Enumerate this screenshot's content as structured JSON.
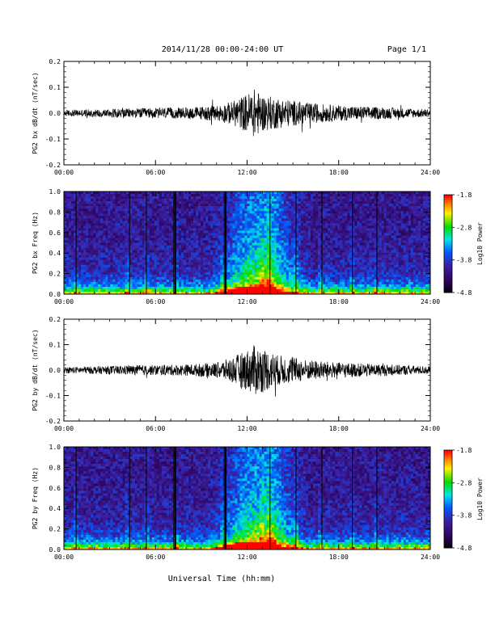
{
  "header": {
    "title": "2014/11/28  00:00-24:00 UT",
    "page": "Page 1/1"
  },
  "footer": {
    "xlabel": "Universal Time (hh:mm)"
  },
  "colorbar": {
    "label": "Log10 Power",
    "ticks": [
      "-1.8",
      "-2.8",
      "-3.8",
      "-4.8"
    ],
    "range": [
      -4.8,
      -1.8
    ]
  },
  "chart_data": [
    {
      "type": "line",
      "ylabel": "PG2 bx dB/dt (nT/sec)",
      "x_ticks": [
        "00:00",
        "06:00",
        "12:00",
        "18:00",
        "24:00"
      ],
      "y_ticks": [
        "0.2",
        "0.1",
        "0.0",
        "-0.1",
        "-0.2"
      ],
      "xlim": [
        0,
        24
      ],
      "ylim": [
        -0.2,
        0.2
      ],
      "series": [
        {
          "x": [
            0,
            2,
            4,
            6,
            8,
            10,
            11,
            12,
            12.5,
            13,
            14,
            15,
            16,
            18,
            20,
            22,
            24
          ],
          "envelope": [
            0.012,
            0.015,
            0.018,
            0.02,
            0.022,
            0.03,
            0.045,
            0.075,
            0.095,
            0.07,
            0.06,
            0.05,
            0.04,
            0.03,
            0.025,
            0.02,
            0.015
          ]
        }
      ]
    },
    {
      "type": "heatmap",
      "ylabel": "PG2 bx Freq (Hz)",
      "x_ticks": [
        "00:00",
        "06:00",
        "12:00",
        "18:00",
        "24:00"
      ],
      "y_ticks": [
        "1.0",
        "0.8",
        "0.6",
        "0.4",
        "0.2",
        "0.0"
      ],
      "xlim": [
        0,
        24
      ],
      "ylim": [
        0,
        1.0
      ],
      "zlim": [
        -4.8,
        -1.8
      ]
    },
    {
      "type": "line",
      "ylabel": "PG2 by dB/dt (nT/sec)",
      "x_ticks": [
        "00:00",
        "06:00",
        "12:00",
        "18:00",
        "24:00"
      ],
      "y_ticks": [
        "0.2",
        "0.1",
        "0.0",
        "-0.1",
        "-0.2"
      ],
      "xlim": [
        0,
        24
      ],
      "ylim": [
        -0.2,
        0.2
      ],
      "series": [
        {
          "x": [
            0,
            2,
            4,
            6,
            8,
            10,
            11,
            12,
            12.5,
            13,
            14,
            15,
            16,
            18,
            20,
            22,
            24
          ],
          "envelope": [
            0.012,
            0.015,
            0.018,
            0.02,
            0.022,
            0.03,
            0.05,
            0.08,
            0.1,
            0.09,
            0.06,
            0.05,
            0.04,
            0.03,
            0.025,
            0.02,
            0.015
          ]
        }
      ]
    },
    {
      "type": "heatmap",
      "ylabel": "PG2 by Freq (Hz)",
      "x_ticks": [
        "00:00",
        "06:00",
        "12:00",
        "18:00",
        "24:00"
      ],
      "y_ticks": [
        "1.0",
        "0.8",
        "0.6",
        "0.4",
        "0.2",
        "0.0"
      ],
      "xlim": [
        0,
        24
      ],
      "ylim": [
        0,
        1.0
      ],
      "zlim": [
        -4.8,
        -1.8
      ]
    }
  ]
}
